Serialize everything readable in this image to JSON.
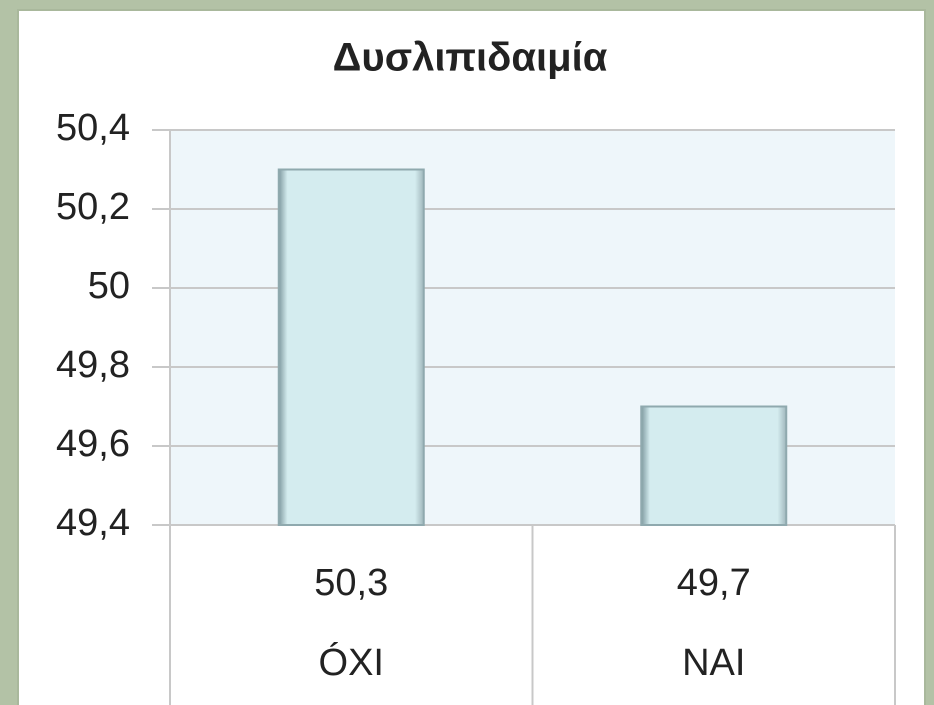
{
  "chart_data": {
    "type": "bar",
    "title": "Δυσλιπιδαιμία",
    "categories": [
      "ÓXI",
      "NAI"
    ],
    "values": [
      50.3,
      49.7
    ],
    "value_labels": [
      "50,3",
      "49,7"
    ],
    "color": "#d4ecef",
    "ylim": [
      49.4,
      50.4
    ],
    "yticks": [
      {
        "value": 49.4,
        "label": "49,4"
      },
      {
        "value": 49.6,
        "label": "49,6"
      },
      {
        "value": 49.8,
        "label": "49,8"
      },
      50,
      {
        "value": 50.2,
        "label": "50,2"
      },
      {
        "value": 50.4,
        "label": "50,4"
      }
    ],
    "grid": true
  }
}
